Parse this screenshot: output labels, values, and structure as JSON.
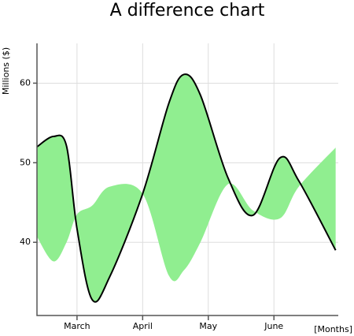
{
  "chart_data": {
    "type": "difference",
    "title": "A difference chart",
    "y_label": "Millions ($)",
    "x_label": "[Months]",
    "x": [
      2.39,
      2.64,
      2.84,
      3.0,
      3.23,
      3.5,
      4.0,
      4.4,
      4.63,
      4.88,
      5.3,
      5.68,
      6.09,
      6.38,
      6.94
    ],
    "series": [
      {
        "color": "#000000",
        "values": [
          52.0,
          53.3,
          52.1,
          41.7,
          32.8,
          35.7,
          46.1,
          57.5,
          61.1,
          58.5,
          48.1,
          43.4,
          50.6,
          47.7,
          39.0
        ]
      },
      {
        "color": "#90ee90",
        "values": [
          40.7,
          37.6,
          40.0,
          43.5,
          44.6,
          47.0,
          46.1,
          35.8,
          36.5,
          40.0,
          47.3,
          44.0,
          43.0,
          47.0,
          51.9
        ]
      }
    ],
    "xlim": [
      2.39,
      6.98
    ],
    "ylim": [
      30.8,
      65
    ],
    "xticks": [
      {
        "value": 3,
        "label": "March"
      },
      {
        "value": 4,
        "label": "April"
      },
      {
        "value": 5,
        "label": "May"
      },
      {
        "value": 6,
        "label": "June"
      }
    ],
    "yticks": [
      40,
      50,
      60
    ],
    "grid": true
  }
}
